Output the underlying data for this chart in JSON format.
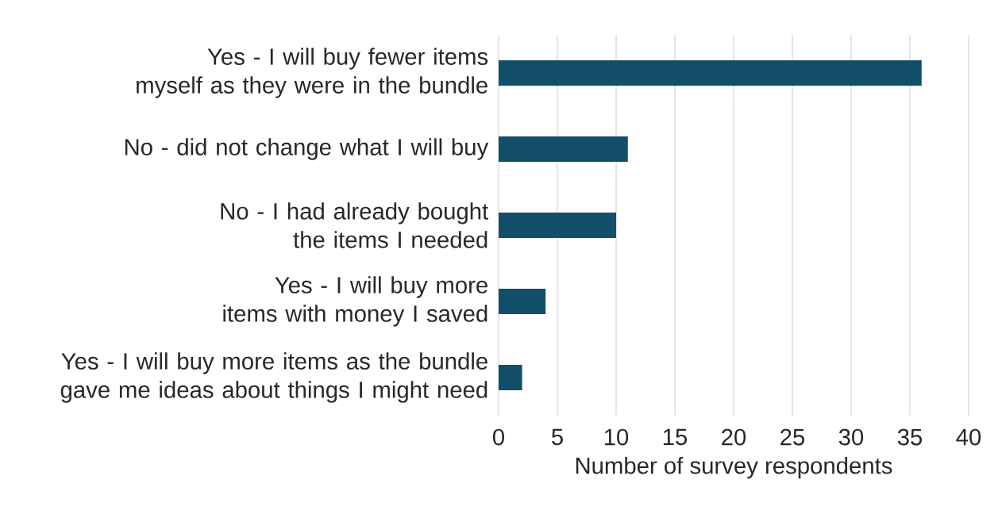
{
  "chart_data": {
    "type": "bar",
    "orientation": "horizontal",
    "categories": [
      "Yes - I will buy fewer items myself as they were in the bundle",
      "No - did not change what I will buy",
      "No - I had already bought the items I needed",
      "Yes - I will buy more items with money I saved",
      "Yes - I will buy more items as the bundle gave me ideas about things I might need"
    ],
    "values": [
      36,
      11,
      10,
      4,
      2
    ],
    "color": "#134f6b",
    "xlabel": "Number of survey respondents",
    "xlim": [
      0,
      40
    ],
    "xticks": [
      0,
      5,
      10,
      15,
      20,
      25,
      30,
      35,
      40
    ],
    "grid": "x"
  }
}
